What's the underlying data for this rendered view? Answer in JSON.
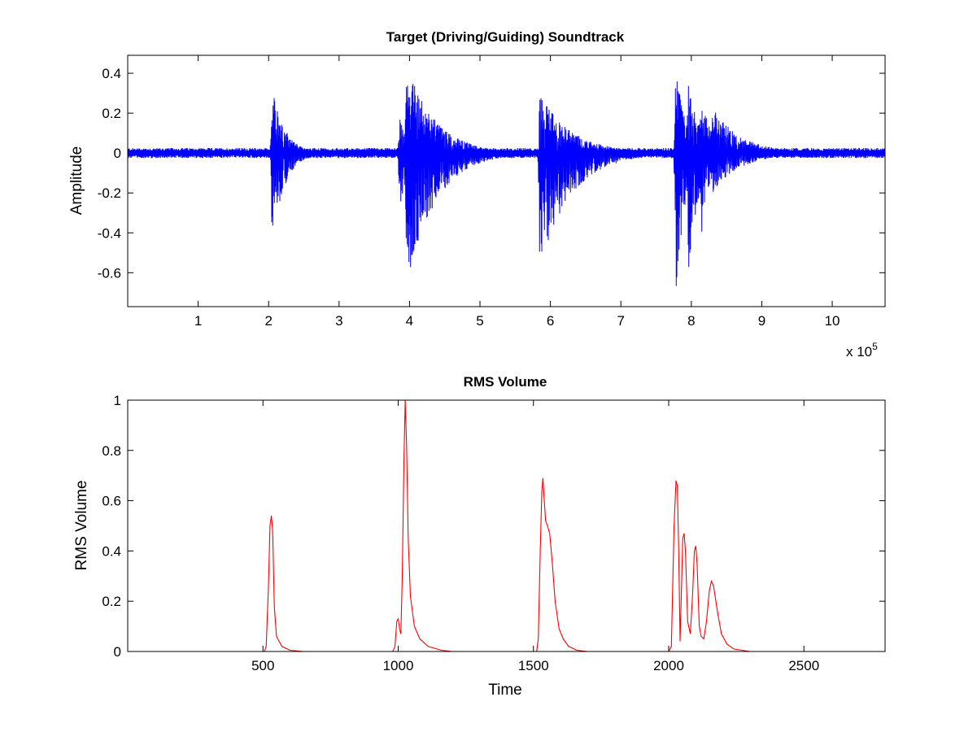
{
  "chart_data": [
    {
      "type": "line",
      "title": "Target (Driving/Guiding) Soundtrack",
      "xlabel": "",
      "ylabel": "Amplitude",
      "x_exponent_label": "x 10",
      "x_exponent": "5",
      "xlim": [
        0,
        1075000
      ],
      "ylim": [
        -0.77,
        0.49
      ],
      "xticks": [
        1,
        2,
        3,
        4,
        5,
        6,
        7,
        8,
        9,
        10
      ],
      "xtick_scale": 100000,
      "yticks": [
        0.4,
        0.2,
        0,
        -0.2,
        -0.4,
        -0.6
      ],
      "ytick_labels": [
        "0.4",
        "0.2",
        "0",
        "-0.2",
        "-0.4",
        "-0.6"
      ],
      "series": [
        {
          "color": "#0000ff",
          "noise_floor": 0.018,
          "bursts": [
            {
              "x": 205000,
              "max": 0.33,
              "min": -0.45,
              "decay": 18000
            },
            {
              "x": 386000,
              "max": 0.18,
              "min": -0.29,
              "decay": 12000
            },
            {
              "x": 396000,
              "max": 0.45,
              "min": -0.7,
              "decay": 40000
            },
            {
              "x": 585000,
              "max": 0.3,
              "min": -0.57,
              "decay": 45000
            },
            {
              "x": 778000,
              "max": 0.44,
              "min": -0.75,
              "decay": 14000
            },
            {
              "x": 796000,
              "max": 0.4,
              "min": -0.62,
              "decay": 14000
            },
            {
              "x": 813000,
              "max": 0.32,
              "min": -0.45,
              "decay": 14000
            },
            {
              "x": 830000,
              "max": 0.23,
              "min": -0.2,
              "decay": 40000
            }
          ]
        }
      ]
    },
    {
      "type": "line",
      "title": "RMS Volume",
      "xlabel": "Time",
      "ylabel": "RMS Volume",
      "xlim": [
        0,
        2800
      ],
      "ylim": [
        0,
        1
      ],
      "xticks": [
        500,
        1000,
        1500,
        2000,
        2500
      ],
      "yticks": [
        0,
        0.2,
        0.4,
        0.6,
        0.8,
        1
      ],
      "ytick_labels": [
        "0",
        "0.2",
        "0.4",
        "0.6",
        "0.8",
        "1"
      ],
      "series": [
        {
          "color": "#ff0000",
          "points": [
            [
              0,
              0
            ],
            [
              505,
              0
            ],
            [
              512,
              0.02
            ],
            [
              520,
              0.25
            ],
            [
              526,
              0.5
            ],
            [
              531,
              0.54
            ],
            [
              536,
              0.48
            ],
            [
              542,
              0.18
            ],
            [
              550,
              0.06
            ],
            [
              570,
              0.02
            ],
            [
              600,
              0.005
            ],
            [
              650,
              0
            ],
            [
              980,
              0
            ],
            [
              988,
              0.02
            ],
            [
              995,
              0.12
            ],
            [
              1000,
              0.13
            ],
            [
              1005,
              0.09
            ],
            [
              1010,
              0.07
            ],
            [
              1015,
              0.3
            ],
            [
              1021,
              0.75
            ],
            [
              1026,
              1.0
            ],
            [
              1031,
              0.82
            ],
            [
              1037,
              0.45
            ],
            [
              1045,
              0.22
            ],
            [
              1060,
              0.1
            ],
            [
              1080,
              0.05
            ],
            [
              1110,
              0.02
            ],
            [
              1160,
              0.005
            ],
            [
              1200,
              0
            ],
            [
              1512,
              0
            ],
            [
              1518,
              0.05
            ],
            [
              1525,
              0.4
            ],
            [
              1531,
              0.64
            ],
            [
              1535,
              0.69
            ],
            [
              1540,
              0.6
            ],
            [
              1545,
              0.52
            ],
            [
              1552,
              0.5
            ],
            [
              1560,
              0.47
            ],
            [
              1570,
              0.35
            ],
            [
              1580,
              0.2
            ],
            [
              1595,
              0.09
            ],
            [
              1610,
              0.05
            ],
            [
              1630,
              0.02
            ],
            [
              1660,
              0.005
            ],
            [
              1700,
              0
            ],
            [
              2000,
              0
            ],
            [
              2010,
              0.02
            ],
            [
              2020,
              0.5
            ],
            [
              2027,
              0.68
            ],
            [
              2032,
              0.66
            ],
            [
              2037,
              0.4
            ],
            [
              2042,
              0.04
            ],
            [
              2046,
              0.2
            ],
            [
              2052,
              0.45
            ],
            [
              2057,
              0.47
            ],
            [
              2062,
              0.4
            ],
            [
              2070,
              0.12
            ],
            [
              2080,
              0.07
            ],
            [
              2088,
              0.22
            ],
            [
              2095,
              0.4
            ],
            [
              2100,
              0.42
            ],
            [
              2105,
              0.35
            ],
            [
              2113,
              0.1
            ],
            [
              2120,
              0.06
            ],
            [
              2130,
              0.05
            ],
            [
              2140,
              0.12
            ],
            [
              2150,
              0.24
            ],
            [
              2158,
              0.28
            ],
            [
              2166,
              0.26
            ],
            [
              2180,
              0.16
            ],
            [
              2195,
              0.07
            ],
            [
              2215,
              0.03
            ],
            [
              2240,
              0.01
            ],
            [
              2300,
              0
            ],
            [
              2800,
              0
            ]
          ]
        }
      ]
    }
  ]
}
